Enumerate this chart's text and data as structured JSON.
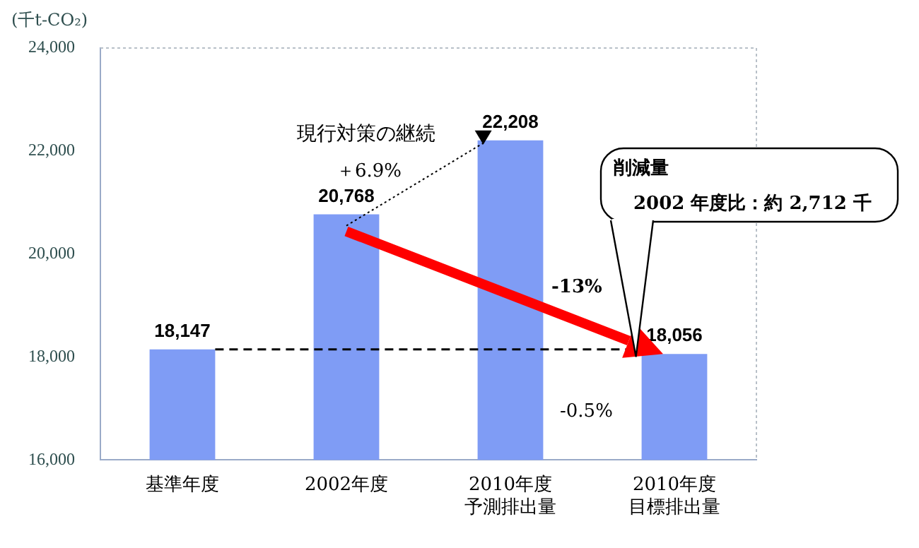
{
  "chart_data": {
    "type": "bar",
    "ylabel": "(千t-CO₂)",
    "categories": [
      "基準年度",
      "2002年度",
      "2010年度予測排出量",
      "2010年度目標排出量"
    ],
    "values": [
      18147,
      20768,
      22208,
      18056
    ],
    "value_labels": [
      "18,147",
      "20,768",
      "22,208",
      "18,056"
    ],
    "color": "#7f9cf5",
    "ylim": [
      16000,
      24000
    ],
    "yticks": [
      {
        "value": 16000,
        "label": "16,000"
      },
      {
        "value": 18000,
        "label": "18,000"
      },
      {
        "value": 20000,
        "label": "20,000"
      },
      {
        "value": 22000,
        "label": "22,000"
      },
      {
        "value": 24000,
        "label": "24,000"
      }
    ],
    "grid": false,
    "legend": false,
    "annotations": [
      "現行対策の継続",
      "＋6.9%",
      "-13%",
      "-0.5%",
      "削減量",
      "2002 年度比：約 2,712 千"
    ]
  }
}
